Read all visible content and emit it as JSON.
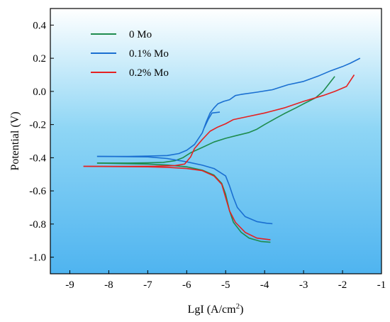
{
  "chart_data": {
    "type": "line",
    "xlabel": "LgI (A/cm",
    "xlabel_sup": "2",
    "xlabel_close": ")",
    "ylabel": "Potential (V)",
    "xlim": [
      -9.5,
      -1
    ],
    "ylim": [
      -1.1,
      0.5
    ],
    "xticks": [
      -9,
      -8,
      -7,
      -6,
      -5,
      -4,
      -3,
      -2,
      -1
    ],
    "yticks": [
      0.4,
      0.2,
      0.0,
      -0.2,
      -0.4,
      -0.6,
      -0.8,
      -1.0
    ],
    "ytick_labels": [
      "0.4",
      "0.2",
      "0.0",
      "-0.2",
      "-0.4",
      "-0.6",
      "-0.8",
      "-1.0"
    ],
    "legend_position": "top-left",
    "background_gradient": [
      "#ffffff",
      "#8fd6f5",
      "#4fb4f0"
    ],
    "series": [
      {
        "name": "0 Mo",
        "color": "#1e8c4e",
        "branches": [
          [
            [
              -8.3,
              -0.432
            ],
            [
              -7.5,
              -0.432
            ],
            [
              -7.0,
              -0.431
            ],
            [
              -6.6,
              -0.428
            ],
            [
              -6.3,
              -0.418
            ],
            [
              -6.1,
              -0.4
            ],
            [
              -5.9,
              -0.37
            ],
            [
              -5.6,
              -0.338
            ],
            [
              -5.3,
              -0.305
            ],
            [
              -5.0,
              -0.283
            ],
            [
              -4.7,
              -0.265
            ],
            [
              -4.4,
              -0.248
            ],
            [
              -4.2,
              -0.228
            ],
            [
              -4.0,
              -0.2
            ],
            [
              -3.7,
              -0.16
            ],
            [
              -3.5,
              -0.135
            ],
            [
              -3.2,
              -0.1
            ],
            [
              -3.0,
              -0.075
            ],
            [
              -2.7,
              -0.04
            ],
            [
              -2.5,
              0.0
            ],
            [
              -2.3,
              0.06
            ],
            [
              -2.2,
              0.09
            ]
          ],
          [
            [
              -8.3,
              -0.432
            ],
            [
              -7.0,
              -0.438
            ],
            [
              -6.5,
              -0.444
            ],
            [
              -6.0,
              -0.455
            ],
            [
              -5.6,
              -0.475
            ],
            [
              -5.3,
              -0.505
            ],
            [
              -5.1,
              -0.555
            ],
            [
              -5.0,
              -0.62
            ],
            [
              -4.9,
              -0.72
            ],
            [
              -4.8,
              -0.79
            ],
            [
              -4.6,
              -0.85
            ],
            [
              -4.4,
              -0.885
            ],
            [
              -4.1,
              -0.905
            ],
            [
              -3.85,
              -0.91
            ]
          ]
        ]
      },
      {
        "name": "0.1% Mo",
        "color": "#1a6fd1",
        "branches": [
          [
            [
              -8.3,
              -0.392
            ],
            [
              -7.5,
              -0.392
            ],
            [
              -7.0,
              -0.39
            ],
            [
              -6.5,
              -0.387
            ],
            [
              -6.2,
              -0.375
            ],
            [
              -6.0,
              -0.355
            ],
            [
              -5.8,
              -0.32
            ],
            [
              -5.6,
              -0.25
            ],
            [
              -5.5,
              -0.185
            ],
            [
              -5.4,
              -0.13
            ],
            [
              -5.3,
              -0.1
            ],
            [
              -5.2,
              -0.075
            ],
            [
              -5.05,
              -0.06
            ],
            [
              -4.9,
              -0.05
            ],
            [
              -4.75,
              -0.025
            ],
            [
              -4.6,
              -0.018
            ],
            [
              -4.2,
              -0.005
            ],
            [
              -3.8,
              0.01
            ],
            [
              -3.4,
              0.04
            ],
            [
              -3.0,
              0.06
            ],
            [
              -2.6,
              0.095
            ],
            [
              -2.3,
              0.125
            ],
            [
              -2.0,
              0.15
            ],
            [
              -1.8,
              0.17
            ],
            [
              -1.55,
              0.2
            ]
          ],
          [
            [
              -5.15,
              -0.125
            ],
            [
              -5.35,
              -0.13
            ],
            [
              -5.45,
              -0.17
            ],
            [
              -5.55,
              -0.22
            ]
          ],
          [
            [
              -8.3,
              -0.392
            ],
            [
              -7.0,
              -0.395
            ],
            [
              -6.5,
              -0.405
            ],
            [
              -6.0,
              -0.425
            ],
            [
              -5.6,
              -0.445
            ],
            [
              -5.3,
              -0.465
            ],
            [
              -5.0,
              -0.51
            ],
            [
              -4.9,
              -0.57
            ],
            [
              -4.8,
              -0.64
            ],
            [
              -4.7,
              -0.7
            ],
            [
              -4.5,
              -0.755
            ],
            [
              -4.2,
              -0.785
            ],
            [
              -3.95,
              -0.795
            ],
            [
              -3.8,
              -0.798
            ]
          ]
        ]
      },
      {
        "name": "0.2% Mo",
        "color": "#e52121",
        "branches": [
          [
            [
              -8.65,
              -0.452
            ],
            [
              -7.5,
              -0.452
            ],
            [
              -6.8,
              -0.451
            ],
            [
              -6.3,
              -0.447
            ],
            [
              -6.05,
              -0.438
            ],
            [
              -5.9,
              -0.395
            ],
            [
              -5.8,
              -0.345
            ],
            [
              -5.6,
              -0.29
            ],
            [
              -5.4,
              -0.24
            ],
            [
              -5.2,
              -0.215
            ],
            [
              -5.0,
              -0.195
            ],
            [
              -4.8,
              -0.17
            ],
            [
              -4.5,
              -0.155
            ],
            [
              -4.0,
              -0.13
            ],
            [
              -3.5,
              -0.1
            ],
            [
              -3.0,
              -0.06
            ],
            [
              -2.5,
              -0.025
            ],
            [
              -2.2,
              0.0
            ],
            [
              -1.9,
              0.03
            ],
            [
              -1.7,
              0.1
            ]
          ],
          [
            [
              -8.65,
              -0.452
            ],
            [
              -7.0,
              -0.455
            ],
            [
              -6.5,
              -0.458
            ],
            [
              -6.0,
              -0.465
            ],
            [
              -5.6,
              -0.478
            ],
            [
              -5.3,
              -0.51
            ],
            [
              -5.1,
              -0.56
            ],
            [
              -5.0,
              -0.64
            ],
            [
              -4.9,
              -0.72
            ],
            [
              -4.75,
              -0.79
            ],
            [
              -4.5,
              -0.85
            ],
            [
              -4.2,
              -0.885
            ],
            [
              -3.85,
              -0.895
            ]
          ]
        ]
      }
    ]
  }
}
